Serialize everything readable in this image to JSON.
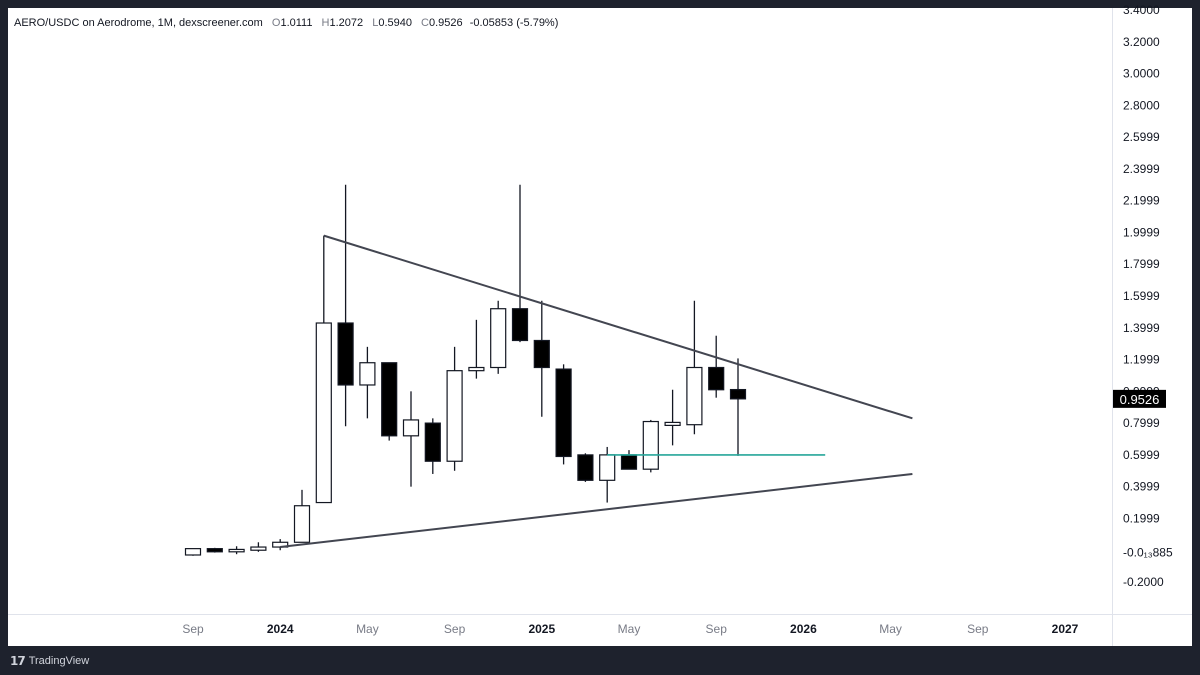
{
  "legend": {
    "symbol": "AERO/USDC on Aerodrome, 1M, dexscreener.com",
    "open_label": "O",
    "open": "1.0111",
    "high_label": "H",
    "high": "1.2072",
    "low_label": "L",
    "low": "0.5940",
    "close_label": "C",
    "close": "0.9526",
    "change": "-0.05853 (-5.79%)"
  },
  "footer": {
    "brand": "TradingView",
    "logo": "logo-icon"
  },
  "colors": {
    "up": "#ffffff",
    "down": "#000000",
    "wick": "#131722",
    "trendline": "#434651",
    "support": "#26a69a",
    "price_label_bg": "#000000"
  },
  "chart_data": {
    "type": "candlestick",
    "title": "",
    "xlabel": "",
    "ylabel": "",
    "interval": "1M",
    "ylim": [
      -0.25,
      3.45
    ],
    "y_ticks": [
      "3.4000",
      "3.2000",
      "3.0000",
      "2.8000",
      "2.5999",
      "2.3999",
      "2.1999",
      "1.9999",
      "1.7999",
      "1.5999",
      "1.3999",
      "1.1999",
      "0.9999",
      "0.7999",
      "0.5999",
      "0.3999",
      "0.1999",
      "-0.013885",
      "-0.2000"
    ],
    "x_ticks": [
      {
        "label": "Sep",
        "date": "2023-09",
        "year": false
      },
      {
        "label": "2024",
        "date": "2024-01",
        "year": true
      },
      {
        "label": "May",
        "date": "2024-05",
        "year": false
      },
      {
        "label": "Sep",
        "date": "2024-09",
        "year": false
      },
      {
        "label": "2025",
        "date": "2025-01",
        "year": true
      },
      {
        "label": "May",
        "date": "2025-05",
        "year": false
      },
      {
        "label": "Sep",
        "date": "2025-09",
        "year": false
      },
      {
        "label": "2026",
        "date": "2026-01",
        "year": true
      },
      {
        "label": "May",
        "date": "2026-05",
        "year": false
      },
      {
        "label": "Sep",
        "date": "2026-09",
        "year": false
      },
      {
        "label": "2027",
        "date": "2027-01",
        "year": true
      }
    ],
    "last_price": "0.9526",
    "candles": [
      {
        "date": "2023-09",
        "o": -0.03,
        "h": 0.01,
        "l": -0.035,
        "c": 0.01
      },
      {
        "date": "2023-10",
        "o": 0.01,
        "h": 0.015,
        "l": -0.015,
        "c": -0.01
      },
      {
        "date": "2023-11",
        "o": -0.01,
        "h": 0.025,
        "l": -0.025,
        "c": 0.005
      },
      {
        "date": "2023-12",
        "o": 0.0,
        "h": 0.05,
        "l": -0.01,
        "c": 0.02
      },
      {
        "date": "2024-01",
        "o": 0.02,
        "h": 0.07,
        "l": 0.0,
        "c": 0.05
      },
      {
        "date": "2024-02",
        "o": 0.05,
        "h": 0.38,
        "l": 0.05,
        "c": 0.28
      },
      {
        "date": "2024-03",
        "o": 0.3,
        "h": 1.98,
        "l": 0.3,
        "c": 1.43
      },
      {
        "date": "2024-04",
        "o": 1.43,
        "h": 2.3,
        "l": 0.78,
        "c": 1.04
      },
      {
        "date": "2024-05",
        "o": 1.04,
        "h": 1.28,
        "l": 0.83,
        "c": 1.18
      },
      {
        "date": "2024-06",
        "o": 1.18,
        "h": 1.18,
        "l": 0.69,
        "c": 0.72
      },
      {
        "date": "2024-07",
        "o": 0.72,
        "h": 1.0,
        "l": 0.4,
        "c": 0.82
      },
      {
        "date": "2024-08",
        "o": 0.8,
        "h": 0.83,
        "l": 0.48,
        "c": 0.56
      },
      {
        "date": "2024-09",
        "o": 0.56,
        "h": 1.28,
        "l": 0.5,
        "c": 1.13
      },
      {
        "date": "2024-10",
        "o": 1.13,
        "h": 1.45,
        "l": 1.08,
        "c": 1.15
      },
      {
        "date": "2024-11",
        "o": 1.15,
        "h": 1.57,
        "l": 1.11,
        "c": 1.52
      },
      {
        "date": "2024-12",
        "o": 1.52,
        "h": 2.3,
        "l": 1.31,
        "c": 1.32
      },
      {
        "date": "2025-01",
        "o": 1.32,
        "h": 1.57,
        "l": 0.84,
        "c": 1.15
      },
      {
        "date": "2025-02",
        "o": 1.14,
        "h": 1.17,
        "l": 0.54,
        "c": 0.59
      },
      {
        "date": "2025-03",
        "o": 0.6,
        "h": 0.61,
        "l": 0.43,
        "c": 0.44
      },
      {
        "date": "2025-04",
        "o": 0.44,
        "h": 0.65,
        "l": 0.3,
        "c": 0.6
      },
      {
        "date": "2025-05",
        "o": 0.6,
        "h": 0.63,
        "l": 0.51,
        "c": 0.51
      },
      {
        "date": "2025-06",
        "o": 0.51,
        "h": 0.82,
        "l": 0.49,
        "c": 0.81
      },
      {
        "date": "2025-07",
        "o": 0.79,
        "h": 1.01,
        "l": 0.66,
        "c": 0.8
      },
      {
        "date": "2025-08",
        "o": 0.79,
        "h": 1.57,
        "l": 0.73,
        "c": 1.15
      },
      {
        "date": "2025-09",
        "o": 1.15,
        "h": 1.35,
        "l": 0.96,
        "c": 1.01
      },
      {
        "date": "2025-10",
        "o": 1.0111,
        "h": 1.2072,
        "l": 0.594,
        "c": 0.9526
      }
    ],
    "trendlines": [
      {
        "name": "upper-trendline",
        "from": {
          "date": "2024-03",
          "value": 1.98
        },
        "to": {
          "date": "2026-06",
          "value": 0.83
        }
      },
      {
        "name": "lower-trendline",
        "from": {
          "date": "2024-01",
          "value": 0.02
        },
        "to": {
          "date": "2026-06",
          "value": 0.48
        }
      }
    ],
    "support_line": {
      "from": "2025-04",
      "to": "2026-02",
      "value": 0.6
    }
  }
}
